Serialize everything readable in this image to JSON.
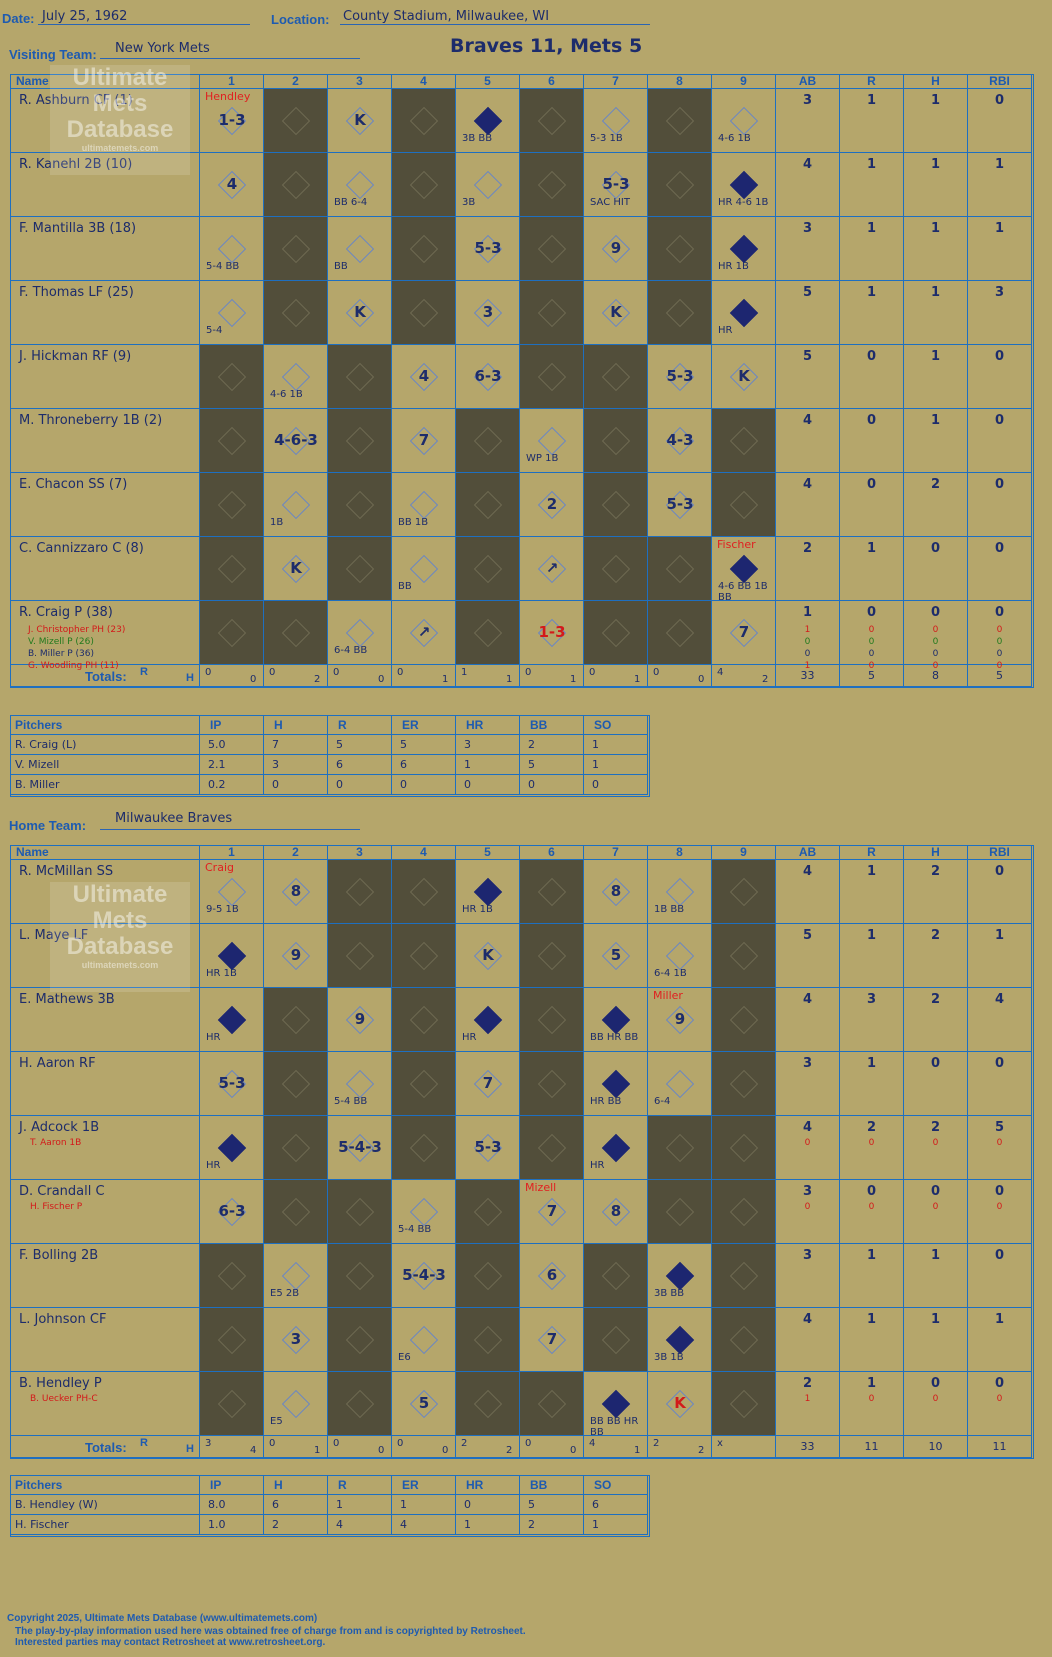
{
  "header": {
    "date_label": "Date:",
    "date": "July 25, 1962",
    "location_label": "Location:",
    "location": "County Stadium, Milwaukee, WI",
    "visiting_label": "Visiting Team:",
    "visiting_team": "New York Mets",
    "home_label": "Home Team:",
    "home_team": "Milwaukee Braves",
    "title": "Braves 11, Mets 5"
  },
  "columns": {
    "name": "Name",
    "innings": [
      "1",
      "2",
      "3",
      "4",
      "5",
      "6",
      "7",
      "8",
      "9"
    ],
    "stats": [
      "AB",
      "R",
      "H",
      "RBI"
    ]
  },
  "visitors": {
    "players": [
      {
        "name": "R. Ashburn CF (1)",
        "ab": "3",
        "r": "1",
        "h": "1",
        "rbi": "0"
      },
      {
        "name": "R. Kanehl 2B (10)",
        "ab": "4",
        "r": "1",
        "h": "1",
        "rbi": "1"
      },
      {
        "name": "F. Mantilla 3B (18)",
        "ab": "3",
        "r": "1",
        "h": "1",
        "rbi": "1"
      },
      {
        "name": "F. Thomas LF (25)",
        "ab": "5",
        "r": "1",
        "h": "1",
        "rbi": "3"
      },
      {
        "name": "J. Hickman RF (9)",
        "ab": "5",
        "r": "0",
        "h": "1",
        "rbi": "0"
      },
      {
        "name": "M. Throneberry 1B (2)",
        "ab": "4",
        "r": "0",
        "h": "1",
        "rbi": "0"
      },
      {
        "name": "E. Chacon SS (7)",
        "ab": "4",
        "r": "0",
        "h": "2",
        "rbi": "0"
      },
      {
        "name": "C. Cannizzaro C (8)",
        "ab": "2",
        "r": "1",
        "h": "0",
        "rbi": "0"
      },
      {
        "name": "R. Craig P (38)",
        "ab": "1",
        "r": "0",
        "h": "0",
        "rbi": "0"
      }
    ],
    "subs": [
      {
        "name": "J. Christopher PH (23)",
        "ab": "1",
        "r": "0",
        "h": "0",
        "rbi": "0"
      },
      {
        "name": "V. Mizell P (26)",
        "ab": "0",
        "r": "0",
        "h": "0",
        "rbi": "0"
      },
      {
        "name": "B. Miller P (36)",
        "ab": "0",
        "r": "0",
        "h": "0",
        "rbi": "0"
      },
      {
        "name": "G. Woodling PH (11)",
        "ab": "1",
        "r": "0",
        "h": "0",
        "rbi": "0"
      }
    ],
    "totals_label": "Totals:",
    "totals_rh_r": "R",
    "totals_rh_h": "H",
    "inning_totals": [
      [
        "0",
        "0"
      ],
      [
        "0",
        "2"
      ],
      [
        "0",
        "0"
      ],
      [
        "0",
        "1"
      ],
      [
        "1",
        "1"
      ],
      [
        "0",
        "1"
      ],
      [
        "0",
        "1"
      ],
      [
        "0",
        "0"
      ],
      [
        "4",
        "2"
      ]
    ],
    "totals": {
      "ab": "33",
      "r": "5",
      "h": "8",
      "rbi": "5"
    },
    "pitchers_label": "Pitchers",
    "pitcher_cols": [
      "IP",
      "H",
      "R",
      "ER",
      "HR",
      "BB",
      "SO"
    ],
    "pitchers": [
      {
        "name": "R. Craig (L)",
        "stats": [
          "5.0",
          "7",
          "5",
          "5",
          "3",
          "2",
          "1"
        ]
      },
      {
        "name": "V. Mizell",
        "stats": [
          "2.1",
          "3",
          "6",
          "6",
          "1",
          "5",
          "1"
        ]
      },
      {
        "name": "B. Miller",
        "stats": [
          "0.2",
          "0",
          "0",
          "0",
          "0",
          "0",
          "0"
        ]
      }
    ]
  },
  "home": {
    "players": [
      {
        "name": "R. McMillan SS",
        "ab": "4",
        "r": "1",
        "h": "2",
        "rbi": "0",
        "sub": "",
        "sub_stats": null
      },
      {
        "name": "L. Maye LF",
        "ab": "5",
        "r": "1",
        "h": "2",
        "rbi": "1",
        "sub": "",
        "sub_stats": null
      },
      {
        "name": "E. Mathews 3B",
        "ab": "4",
        "r": "3",
        "h": "2",
        "rbi": "4",
        "sub": "",
        "sub_stats": null
      },
      {
        "name": "H. Aaron RF",
        "ab": "3",
        "r": "1",
        "h": "0",
        "rbi": "0",
        "sub": "",
        "sub_stats": null
      },
      {
        "name": "J. Adcock 1B",
        "ab": "4",
        "r": "2",
        "h": "2",
        "rbi": "5",
        "sub": "T. Aaron 1B",
        "sub_stats": [
          "0",
          "0",
          "0",
          "0"
        ]
      },
      {
        "name": "D. Crandall C",
        "ab": "3",
        "r": "0",
        "h": "0",
        "rbi": "0",
        "sub": "H. Fischer P",
        "sub_stats": [
          "0",
          "0",
          "0",
          "0"
        ]
      },
      {
        "name": "F. Bolling 2B",
        "ab": "3",
        "r": "1",
        "h": "1",
        "rbi": "0",
        "sub": "",
        "sub_stats": null
      },
      {
        "name": "L. Johnson CF",
        "ab": "4",
        "r": "1",
        "h": "1",
        "rbi": "1",
        "sub": "",
        "sub_stats": null
      },
      {
        "name": "B. Hendley P",
        "ab": "2",
        "r": "1",
        "h": "0",
        "rbi": "0",
        "sub": "B. Uecker PH-C",
        "sub_stats": [
          "1",
          "0",
          "0",
          "0"
        ]
      }
    ],
    "totals_label": "Totals:",
    "totals_rh_r": "R",
    "totals_rh_h": "H",
    "inning_totals": [
      [
        "3",
        "4"
      ],
      [
        "0",
        "1"
      ],
      [
        "0",
        "0"
      ],
      [
        "0",
        "0"
      ],
      [
        "2",
        "2"
      ],
      [
        "0",
        "0"
      ],
      [
        "4",
        "1"
      ],
      [
        "2",
        "2"
      ],
      [
        "x",
        ""
      ]
    ],
    "totals": {
      "ab": "33",
      "r": "11",
      "h": "10",
      "rbi": "11"
    },
    "pitchers_label": "Pitchers",
    "pitcher_cols": [
      "IP",
      "H",
      "R",
      "ER",
      "HR",
      "BB",
      "SO"
    ],
    "pitchers": [
      {
        "name": "B. Hendley (W)",
        "stats": [
          "8.0",
          "6",
          "1",
          "1",
          "0",
          "5",
          "6"
        ]
      },
      {
        "name": "H. Fischer",
        "stats": [
          "1.0",
          "2",
          "4",
          "4",
          "1",
          "2",
          "1"
        ]
      }
    ]
  },
  "visitor_plays": [
    {
      "row": 0,
      "inn": 1,
      "text": "1-3",
      "note": "Hendley",
      "note_color": "#e02020"
    },
    {
      "row": 0,
      "inn": 3,
      "text": "K"
    },
    {
      "row": 0,
      "inn": 5,
      "text": "",
      "filled": true,
      "small": "3B BB"
    },
    {
      "row": 0,
      "inn": 7,
      "text": "",
      "small": "5-3 1B"
    },
    {
      "row": 0,
      "inn": 9,
      "text": "",
      "small": "4-6 1B"
    },
    {
      "row": 1,
      "inn": 1,
      "text": "4"
    },
    {
      "row": 1,
      "inn": 3,
      "text": "",
      "small": "BB 6-4"
    },
    {
      "row": 1,
      "inn": 5,
      "text": "",
      "small": "3B"
    },
    {
      "row": 1,
      "inn": 7,
      "text": "5-3",
      "small": "SAC HIT"
    },
    {
      "row": 1,
      "inn": 9,
      "text": "",
      "filled": true,
      "small": "HR 4-6 1B"
    },
    {
      "row": 2,
      "inn": 1,
      "text": "",
      "small": "5-4 BB"
    },
    {
      "row": 2,
      "inn": 3,
      "text": "",
      "small": "BB"
    },
    {
      "row": 2,
      "inn": 5,
      "text": "5-3"
    },
    {
      "row": 2,
      "inn": 7,
      "text": "9"
    },
    {
      "row": 2,
      "inn": 9,
      "text": "",
      "filled": true,
      "small": "HR 1B"
    },
    {
      "row": 3,
      "inn": 1,
      "text": "",
      "small": "5-4"
    },
    {
      "row": 3,
      "inn": 3,
      "text": "K"
    },
    {
      "row": 3,
      "inn": 5,
      "text": "3"
    },
    {
      "row": 3,
      "inn": 7,
      "text": "K"
    },
    {
      "row": 3,
      "inn": 9,
      "text": "",
      "filled": true,
      "small": "HR"
    },
    {
      "row": 4,
      "inn": 2,
      "text": "",
      "small": "4-6 1B"
    },
    {
      "row": 4,
      "inn": 4,
      "text": "4"
    },
    {
      "row": 4,
      "inn": 5,
      "text": "6-3"
    },
    {
      "row": 4,
      "inn": 8,
      "text": "5-3"
    },
    {
      "row": 4,
      "inn": 9,
      "text": "K"
    },
    {
      "row": 5,
      "inn": 2,
      "text": "4-6-3"
    },
    {
      "row": 5,
      "inn": 4,
      "text": "7"
    },
    {
      "row": 5,
      "inn": 6,
      "text": "",
      "small": "WP 1B"
    },
    {
      "row": 5,
      "inn": 8,
      "text": "4-3"
    },
    {
      "row": 6,
      "inn": 2,
      "text": "",
      "small": "1B"
    },
    {
      "row": 6,
      "inn": 4,
      "text": "",
      "small": "BB 1B"
    },
    {
      "row": 6,
      "inn": 6,
      "text": "2"
    },
    {
      "row": 6,
      "inn": 8,
      "text": "5-3"
    },
    {
      "row": 7,
      "inn": 2,
      "text": "K"
    },
    {
      "row": 7,
      "inn": 4,
      "text": "",
      "small": "BB"
    },
    {
      "row": 7,
      "inn": 6,
      "text": "↗"
    },
    {
      "row": 7,
      "inn": 9,
      "text": "",
      "filled": true,
      "small": "4-6 BB 1B BB",
      "note": "Fischer",
      "note_color": "#e02020"
    },
    {
      "row": 8,
      "inn": 3,
      "text": "",
      "small": "6-4 BB"
    },
    {
      "row": 8,
      "inn": 4,
      "text": "↗"
    },
    {
      "row": 8,
      "inn": 6,
      "text": "1-3",
      "text_color": "#d31a1a"
    },
    {
      "row": 8,
      "inn": 9,
      "text": "7"
    }
  ],
  "home_plays": [
    {
      "row": 0,
      "inn": 1,
      "text": "",
      "small": "9-5 1B",
      "note": "Craig",
      "note_color": "#e02020"
    },
    {
      "row": 0,
      "inn": 2,
      "text": "8"
    },
    {
      "row": 0,
      "inn": 5,
      "text": "",
      "filled": true,
      "small": "HR 1B"
    },
    {
      "row": 0,
      "inn": 7,
      "text": "8"
    },
    {
      "row": 0,
      "inn": 8,
      "text": "",
      "small": "1B BB"
    },
    {
      "row": 1,
      "inn": 1,
      "text": "",
      "filled": true,
      "small": "HR 1B"
    },
    {
      "row": 1,
      "inn": 2,
      "text": "9"
    },
    {
      "row": 1,
      "inn": 5,
      "text": "K"
    },
    {
      "row": 1,
      "inn": 7,
      "text": "5"
    },
    {
      "row": 1,
      "inn": 8,
      "text": "",
      "small": "6-4 1B"
    },
    {
      "row": 2,
      "inn": 1,
      "text": "",
      "filled": true,
      "small": "HR"
    },
    {
      "row": 2,
      "inn": 3,
      "text": "9"
    },
    {
      "row": 2,
      "inn": 5,
      "text": "",
      "filled": true,
      "small": "HR"
    },
    {
      "row": 2,
      "inn": 7,
      "text": "",
      "filled": true,
      "small": "BB HR BB"
    },
    {
      "row": 2,
      "inn": 8,
      "text": "9",
      "note": "Miller",
      "note_color": "#e02020"
    },
    {
      "row": 3,
      "inn": 1,
      "text": "5-3"
    },
    {
      "row": 3,
      "inn": 3,
      "text": "",
      "small": "5-4 BB"
    },
    {
      "row": 3,
      "inn": 5,
      "text": "7"
    },
    {
      "row": 3,
      "inn": 7,
      "text": "",
      "filled": true,
      "small": "HR BB"
    },
    {
      "row": 3,
      "inn": 8,
      "text": "",
      "small": "6-4"
    },
    {
      "row": 4,
      "inn": 1,
      "text": "",
      "filled": true,
      "small": "HR"
    },
    {
      "row": 4,
      "inn": 3,
      "text": "5-4-3"
    },
    {
      "row": 4,
      "inn": 5,
      "text": "5-3"
    },
    {
      "row": 4,
      "inn": 7,
      "text": "",
      "filled": true,
      "small": "HR"
    },
    {
      "row": 5,
      "inn": 1,
      "text": "6-3"
    },
    {
      "row": 5,
      "inn": 4,
      "text": "",
      "small": "5-4 BB"
    },
    {
      "row": 5,
      "inn": 6,
      "text": "7",
      "note": "Mizell",
      "note_color": "#e02020"
    },
    {
      "row": 5,
      "inn": 7,
      "text": "8"
    },
    {
      "row": 6,
      "inn": 2,
      "text": "",
      "small": "E5 2B"
    },
    {
      "row": 6,
      "inn": 4,
      "text": "5-4-3"
    },
    {
      "row": 6,
      "inn": 6,
      "text": "6"
    },
    {
      "row": 6,
      "inn": 8,
      "text": "",
      "filled": true,
      "small": "3B BB"
    },
    {
      "row": 7,
      "inn": 2,
      "text": "3"
    },
    {
      "row": 7,
      "inn": 4,
      "text": "",
      "small": "E6"
    },
    {
      "row": 7,
      "inn": 6,
      "text": "7"
    },
    {
      "row": 7,
      "inn": 8,
      "text": "",
      "filled": true,
      "small": "3B 1B"
    },
    {
      "row": 8,
      "inn": 2,
      "text": "",
      "small": "E5"
    },
    {
      "row": 8,
      "inn": 4,
      "text": "5"
    },
    {
      "row": 8,
      "inn": 7,
      "text": "",
      "filled": true,
      "small": "BB BB HR BB"
    },
    {
      "row": 8,
      "inn": 8,
      "text": "K",
      "text_color": "#d31a1a"
    }
  ],
  "watermark": {
    "line1": "Ultimate",
    "line2": "Mets",
    "line3": "Database",
    "url": "ultimatemets.com"
  },
  "footer": {
    "line1": "Copyright 2025, Ultimate Mets Database (www.ultimatemets.com)",
    "line2": "The play-by-play information used here was obtained free of charge from and is copyrighted by Retrosheet.",
    "line3": "Interested parties may contact Retrosheet at www.retrosheet.org."
  },
  "colors": {
    "background": "#b5a66b",
    "grid": "#1e6fc0",
    "dark_cell": "#524e3a",
    "ink": "#1d2c6b",
    "red": "#d31a1a",
    "green": "#237a1e"
  }
}
